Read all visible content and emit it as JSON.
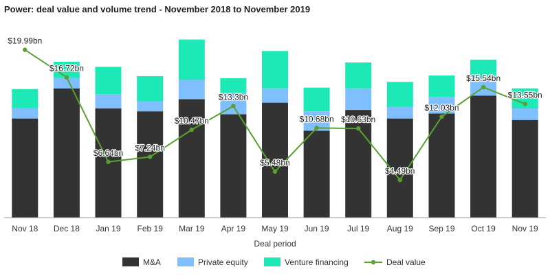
{
  "chart_data": {
    "type": "bar",
    "title": "Power: deal value and volume trend - November 2018 to November 2019",
    "xlabel": "Deal period",
    "ylabel": "",
    "stacked": true,
    "categories": [
      "Nov 18",
      "Dec 18",
      "Jan 19",
      "Feb 19",
      "Mar 19",
      "Apr 19",
      "May 19",
      "Jun 19",
      "Jul 19",
      "Aug 19",
      "Sep 19",
      "Oct 19",
      "Nov 19"
    ],
    "series": [
      {
        "name": "M&A",
        "color": "#333333",
        "values": [
          138,
          180,
          152,
          148,
          165,
          144,
          160,
          121,
          150,
          138,
          145,
          170,
          136
        ]
      },
      {
        "name": "Private equity",
        "color": "#7fbfff",
        "values": [
          14,
          15,
          20,
          14,
          27,
          30,
          20,
          27,
          30,
          16,
          23,
          25,
          16
        ]
      },
      {
        "name": "Venture financing",
        "color": "#1de9b6",
        "values": [
          27,
          22,
          38,
          35,
          56,
          20,
          52,
          33,
          36,
          35,
          30,
          25,
          28
        ]
      }
    ],
    "bar_ylim": [
      0,
      260
    ],
    "line": {
      "name": "Deal value",
      "color": "#5aa02c",
      "values": [
        19.99,
        16.72,
        6.64,
        7.24,
        10.47,
        13.3,
        5.48,
        10.68,
        10.63,
        4.49,
        12.03,
        15.54,
        13.55
      ],
      "labels": [
        "$19.99bn",
        "$16.72bn",
        "$6.64bn",
        "$7.24bn",
        "$10.47bn",
        "$13.3bn",
        "$5.48bn",
        "$10.68bn",
        "$10.63bn",
        "$4.49bn",
        "$12.03bn",
        "$15.54bn",
        "$13.55bn"
      ],
      "ylim": [
        0,
        22.25
      ]
    },
    "legend": {
      "placement": "bottom",
      "items": [
        "M&A",
        "Private equity",
        "Venture financing",
        "Deal value"
      ]
    },
    "grid": false
  }
}
